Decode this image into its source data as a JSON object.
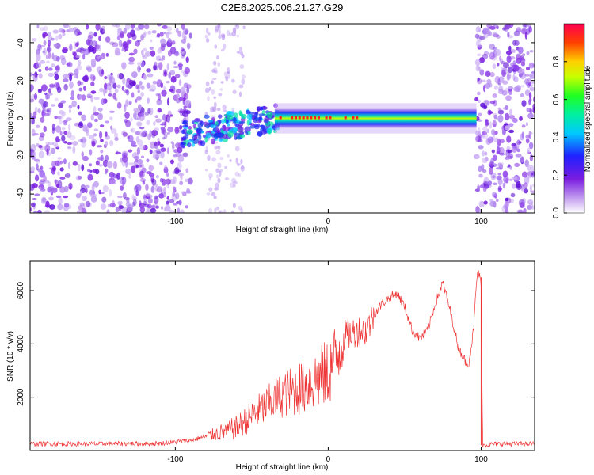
{
  "title": "C2E6.2025.006.21.27.G29",
  "chart_data": [
    {
      "type": "heatmap",
      "xlabel": "Height of straight line (km)",
      "ylabel": "Frequency (Hz)",
      "xlim": [
        -195,
        135
      ],
      "ylim": [
        -50,
        50
      ],
      "xticks": [
        -100,
        0,
        100
      ],
      "yticks": [
        -40,
        -20,
        0,
        20,
        40
      ],
      "colorbar": {
        "label": "Normalized spectral amplitude",
        "range": [
          0,
          1
        ],
        "ticks": [
          0.0,
          0.2,
          0.4,
          0.6,
          0.8
        ]
      },
      "regions": [
        {
          "x": [
            -195,
            -90
          ],
          "description": "broadband noise, all frequencies"
        },
        {
          "x": [
            -80,
            -55
          ],
          "description": "sparse noise"
        },
        {
          "x": [
            -95,
            -35
          ],
          "description": "signal emerging near 0 Hz, spread about ±10 Hz"
        },
        {
          "x": [
            -35,
            97
          ],
          "description": "strong narrow signal near 0 Hz"
        },
        {
          "x": [
            97,
            135
          ],
          "description": "broadband noise, all frequencies"
        }
      ]
    },
    {
      "type": "line",
      "xlabel": "Height of straight line (km)",
      "ylabel": "SNR (10 * v/v)",
      "xlim": [
        -195,
        135
      ],
      "ylim": [
        0,
        7100
      ],
      "xticks": [
        -100,
        0,
        100
      ],
      "yticks": [
        2000,
        4000,
        6000
      ],
      "series": [
        {
          "color": "#ee3333",
          "x": [
            -195,
            -150,
            -110,
            -90,
            -75,
            -60,
            -50,
            -40,
            -30,
            -20,
            -10,
            0,
            5,
            10,
            15,
            20,
            25,
            30,
            35,
            40,
            45,
            50,
            55,
            60,
            65,
            70,
            75,
            80,
            85,
            90,
            92,
            95,
            97,
            98,
            99,
            100,
            101,
            110,
            135
          ],
          "values": [
            250,
            250,
            270,
            380,
            600,
            850,
            1300,
            1700,
            2100,
            2300,
            2600,
            2900,
            3500,
            4300,
            4400,
            4500,
            4500,
            5100,
            5500,
            5750,
            5900,
            5400,
            4500,
            4200,
            4500,
            5500,
            6300,
            5200,
            3900,
            3300,
            3300,
            4500,
            6300,
            6800,
            6500,
            6300,
            200,
            250,
            250
          ]
        }
      ]
    }
  ]
}
